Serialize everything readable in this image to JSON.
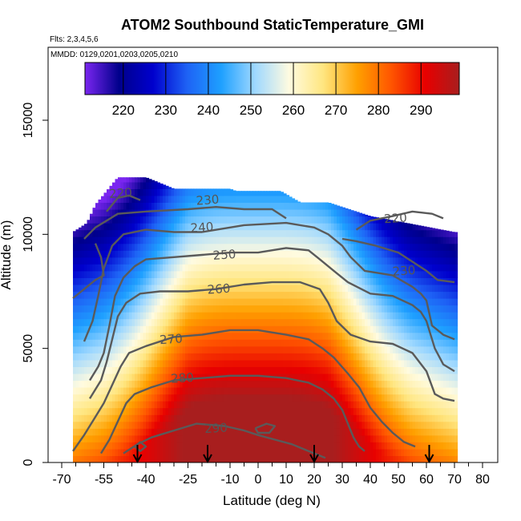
{
  "chart_data": {
    "type": "heatmap",
    "title": "ATOM2 Southbound StaticTemperature_GMI",
    "subtitle_flights": "Flts: 2,3,4,5,6",
    "subtitle_dates": "MMDD: 0129,0201,0203,0205,0210",
    "xlabel": "Latitude (deg N)",
    "ylabel": "Altitude (m)",
    "xlim": [
      -70,
      80
    ],
    "ylim": [
      0,
      17500
    ],
    "x_ticks": [
      -70,
      -55,
      -40,
      -25,
      -10,
      0,
      10,
      20,
      30,
      40,
      50,
      60,
      70,
      80
    ],
    "x_minor_ticks": [
      -65,
      -60,
      -50,
      -45,
      -35,
      -30,
      -20,
      -15,
      -5,
      5,
      15,
      25,
      35,
      45,
      55,
      65,
      75
    ],
    "y_ticks": [
      0,
      5000,
      10000,
      15000
    ],
    "colorbar": {
      "range": [
        211,
        299
      ],
      "ticks": [
        220,
        230,
        240,
        250,
        260,
        270,
        280,
        290
      ],
      "colors": [
        "#7a26f0",
        "#00008b",
        "#0000cd",
        "#1e62f5",
        "#1ea0ff",
        "#9fd8ff",
        "#fffbe0",
        "#ffe680",
        "#ffa000",
        "#ff5500",
        "#e80000",
        "#a81e1e"
      ]
    },
    "contour_levels": [
      220,
      230,
      240,
      250,
      260,
      270,
      280,
      290
    ],
    "contour_labels": [
      {
        "text": "220",
        "lat": -49,
        "alt": 11800
      },
      {
        "text": "230",
        "lat": -18,
        "alt": 11500
      },
      {
        "text": "240",
        "lat": -20,
        "alt": 10300
      },
      {
        "text": "250",
        "lat": -12,
        "alt": 9100
      },
      {
        "text": "260",
        "lat": -14,
        "alt": 7600
      },
      {
        "text": "270",
        "lat": -31,
        "alt": 5400
      },
      {
        "text": "280",
        "lat": -27,
        "alt": 3700
      },
      {
        "text": "290",
        "lat": -15,
        "alt": 1500
      },
      {
        "text": "220",
        "lat": 49,
        "alt": 10700
      },
      {
        "text": "230",
        "lat": 52,
        "alt": 8400
      }
    ],
    "arrow_latitudes": [
      -43,
      -18,
      20,
      61
    ],
    "data_extent": {
      "lat_min": -66,
      "lat_max": 71,
      "top_altitude": [
        [
          -66,
          10100
        ],
        [
          -61,
          10500
        ],
        [
          -58,
          11300
        ],
        [
          -50,
          12500
        ],
        [
          -40,
          12500
        ],
        [
          -30,
          12000
        ],
        [
          -10,
          12000
        ],
        [
          -8,
          11900
        ],
        [
          8,
          11900
        ],
        [
          15,
          11400
        ],
        [
          25,
          11400
        ],
        [
          40,
          10800
        ],
        [
          70,
          10100
        ],
        [
          71,
          10100
        ]
      ]
    },
    "contours": [
      {
        "level": 220,
        "path": [
          [
            -54,
            11000
          ],
          [
            -50,
            11600
          ],
          [
            -46,
            11700
          ],
          [
            -42,
            11500
          ]
        ]
      },
      {
        "level": 220,
        "path": [
          [
            35,
            10200
          ],
          [
            40,
            10600
          ],
          [
            48,
            10800
          ],
          [
            55,
            11000
          ],
          [
            62,
            10900
          ],
          [
            66,
            10700
          ]
        ]
      },
      {
        "level": 230,
        "path": [
          [
            -62,
            9800
          ],
          [
            -58,
            10300
          ],
          [
            -54,
            10600
          ],
          [
            -50,
            10900
          ],
          [
            -40,
            11000
          ],
          [
            -25,
            11100
          ],
          [
            -15,
            11200
          ],
          [
            -5,
            11100
          ],
          [
            5,
            11100
          ],
          [
            10,
            10700
          ]
        ]
      },
      {
        "level": 230,
        "path": [
          [
            -66,
            7200
          ],
          [
            -62,
            7600
          ],
          [
            -58,
            8000
          ],
          [
            -55,
            8200
          ],
          [
            -56,
            9000
          ],
          [
            -58,
            9600
          ]
        ]
      },
      {
        "level": 230,
        "path": [
          [
            30,
            9800
          ],
          [
            35,
            9700
          ],
          [
            42,
            9500
          ],
          [
            50,
            9200
          ],
          [
            55,
            8800
          ],
          [
            60,
            8400
          ],
          [
            64,
            8000
          ],
          [
            70,
            7900
          ]
        ]
      },
      {
        "level": 240,
        "path": [
          [
            -62,
            5300
          ],
          [
            -59,
            6200
          ],
          [
            -57,
            7300
          ],
          [
            -55,
            8500
          ],
          [
            -52,
            9500
          ],
          [
            -48,
            10000
          ],
          [
            -40,
            10200
          ],
          [
            -30,
            10100
          ],
          [
            -20,
            10100
          ],
          [
            -10,
            10300
          ],
          [
            -5,
            10400
          ],
          [
            10,
            10500
          ],
          [
            20,
            10300
          ],
          [
            25,
            10000
          ],
          [
            30,
            9500
          ],
          [
            33,
            9000
          ],
          [
            38,
            8400
          ],
          [
            43,
            8300
          ],
          [
            48,
            8200
          ],
          [
            55,
            7700
          ],
          [
            58,
            7400
          ],
          [
            60,
            7100
          ],
          [
            62,
            6000
          ],
          [
            66,
            5600
          ],
          [
            70,
            5400
          ]
        ]
      },
      {
        "level": 250,
        "path": [
          [
            -60,
            3600
          ],
          [
            -57,
            4200
          ],
          [
            -55,
            4800
          ],
          [
            -53,
            6000
          ],
          [
            -51,
            7300
          ],
          [
            -48,
            8100
          ],
          [
            -44,
            8600
          ],
          [
            -40,
            8900
          ],
          [
            -30,
            9000
          ],
          [
            -20,
            9100
          ],
          [
            -10,
            9200
          ],
          [
            0,
            9200
          ],
          [
            10,
            9400
          ],
          [
            18,
            9300
          ],
          [
            22,
            8900
          ],
          [
            27,
            8400
          ],
          [
            32,
            7900
          ],
          [
            40,
            7400
          ],
          [
            48,
            7300
          ],
          [
            55,
            6900
          ],
          [
            58,
            6600
          ],
          [
            60,
            6200
          ],
          [
            63,
            5000
          ],
          [
            66,
            4300
          ],
          [
            70,
            4000
          ]
        ]
      },
      {
        "level": 260,
        "path": [
          [
            -60,
            2800
          ],
          [
            -58,
            3200
          ],
          [
            -56,
            3600
          ],
          [
            -54,
            4400
          ],
          [
            -52,
            5400
          ],
          [
            -50,
            6400
          ],
          [
            -47,
            7000
          ],
          [
            -42,
            7400
          ],
          [
            -35,
            7500
          ],
          [
            -25,
            7500
          ],
          [
            -15,
            7600
          ],
          [
            -5,
            7800
          ],
          [
            5,
            7900
          ],
          [
            15,
            7900
          ],
          [
            22,
            7600
          ],
          [
            25,
            7000
          ],
          [
            28,
            6200
          ],
          [
            33,
            5600
          ],
          [
            40,
            5300
          ],
          [
            48,
            5200
          ],
          [
            55,
            4800
          ],
          [
            60,
            4000
          ],
          [
            63,
            3000
          ],
          [
            66,
            2800
          ],
          [
            70,
            2700
          ]
        ]
      },
      {
        "level": 270,
        "path": [
          [
            -66,
            500
          ],
          [
            -62,
            1200
          ],
          [
            -58,
            2000
          ],
          [
            -55,
            2600
          ],
          [
            -52,
            3400
          ],
          [
            -49,
            4200
          ],
          [
            -46,
            4800
          ],
          [
            -40,
            5100
          ],
          [
            -30,
            5500
          ],
          [
            -20,
            5600
          ],
          [
            -10,
            5800
          ],
          [
            0,
            5800
          ],
          [
            10,
            5600
          ],
          [
            18,
            5400
          ],
          [
            23,
            5000
          ],
          [
            27,
            4600
          ],
          [
            32,
            3900
          ],
          [
            36,
            3300
          ],
          [
            40,
            2400
          ],
          [
            44,
            1800
          ],
          [
            48,
            1300
          ],
          [
            52,
            900
          ],
          [
            56,
            700
          ]
        ]
      },
      {
        "level": 280,
        "path": [
          [
            -56,
            400
          ],
          [
            -53,
            1000
          ],
          [
            -50,
            1800
          ],
          [
            -47,
            2600
          ],
          [
            -44,
            3000
          ],
          [
            -38,
            3300
          ],
          [
            -30,
            3600
          ],
          [
            -20,
            3700
          ],
          [
            -10,
            3800
          ],
          [
            0,
            3800
          ],
          [
            10,
            3700
          ],
          [
            18,
            3500
          ],
          [
            23,
            3200
          ],
          [
            27,
            2800
          ],
          [
            30,
            2300
          ],
          [
            32,
            1700
          ],
          [
            34,
            1100
          ],
          [
            36,
            700
          ],
          [
            38,
            500
          ]
        ]
      },
      {
        "level": 290,
        "path": [
          [
            -48,
            400
          ],
          [
            -43,
            800
          ],
          [
            -38,
            1100
          ],
          [
            -30,
            1400
          ],
          [
            -22,
            1700
          ],
          [
            -12,
            1600
          ],
          [
            -5,
            1400
          ],
          [
            0,
            1200
          ],
          [
            6,
            1000
          ],
          [
            12,
            800
          ],
          [
            18,
            500
          ],
          [
            24,
            200
          ]
        ]
      },
      {
        "level": 290,
        "path": [
          [
            -1,
            1500
          ],
          [
            3,
            1700
          ],
          [
            6,
            1600
          ],
          [
            4,
            1300
          ],
          [
            0,
            1300
          ],
          [
            -1,
            1500
          ]
        ]
      },
      {
        "level": 290,
        "path": [
          [
            -44,
            700
          ],
          [
            -42,
            900
          ],
          [
            -40,
            700
          ],
          [
            -42,
            500
          ],
          [
            -44,
            700
          ]
        ]
      }
    ]
  }
}
